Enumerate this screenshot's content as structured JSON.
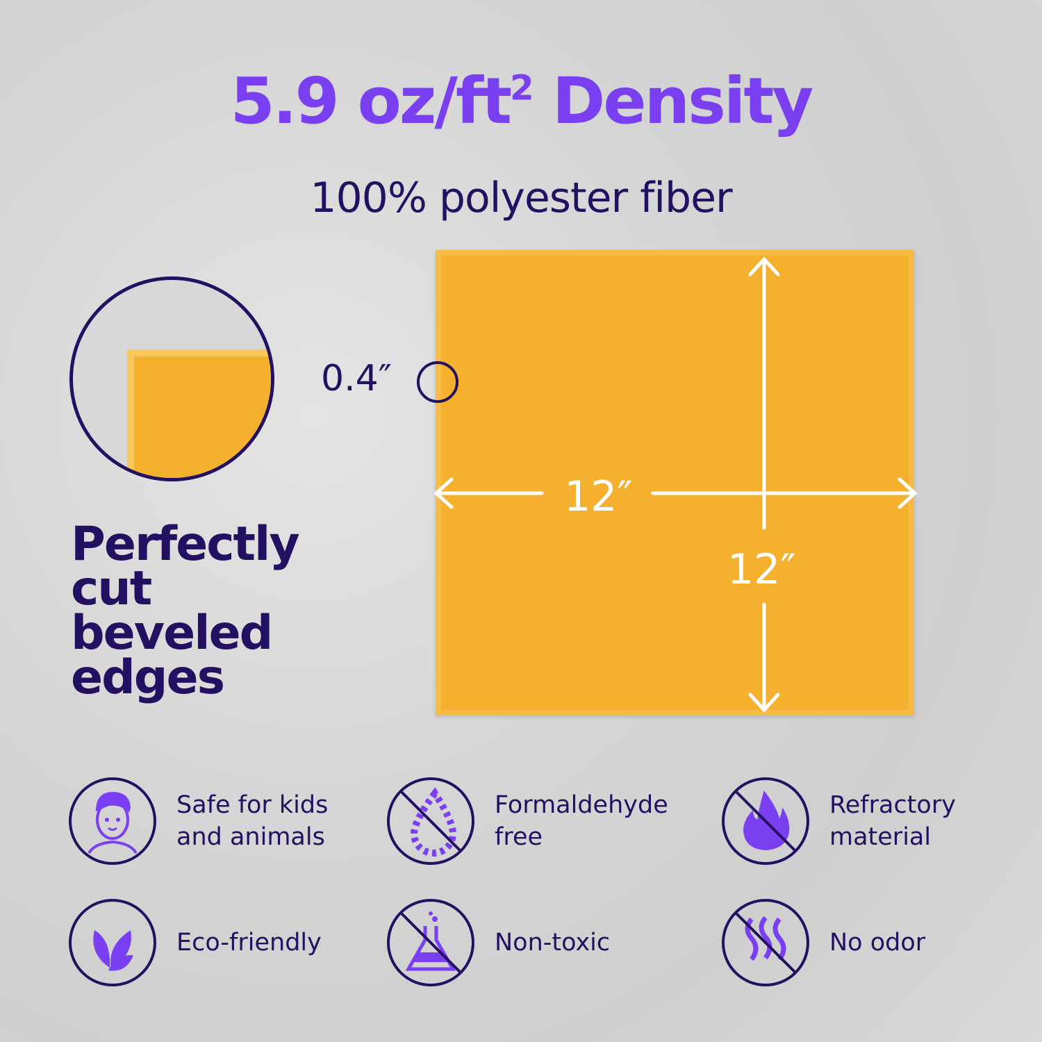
{
  "title": {
    "main": "5.9 oz/ft",
    "sup": "2",
    "rest": " Density"
  },
  "subtitle": "100% polyester fiber",
  "thickness": "0.4″",
  "width_label": "12″",
  "height_label": "12″",
  "bevel_text": [
    "Perfectly",
    "cut",
    "beveled",
    "edges"
  ],
  "colors": {
    "accent": "#7a3ff0",
    "dark": "#241061",
    "panel": "#f5b02e"
  },
  "features": [
    {
      "icon": "child-face-icon",
      "label": [
        "Safe for kids",
        "and animals"
      ]
    },
    {
      "icon": "no-drop-icon",
      "label": [
        "Formaldehyde",
        "free"
      ]
    },
    {
      "icon": "no-fire-icon",
      "label": [
        "Refractory",
        "material"
      ]
    },
    {
      "icon": "leaves-icon",
      "label": [
        "Eco-friendly"
      ]
    },
    {
      "icon": "no-flask-icon",
      "label": [
        "Non-toxic"
      ]
    },
    {
      "icon": "no-odor-icon",
      "label": [
        "No odor"
      ]
    }
  ]
}
